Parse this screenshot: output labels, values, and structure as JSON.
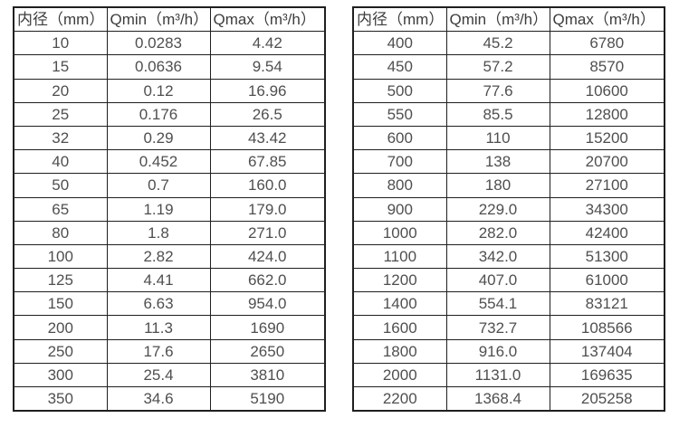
{
  "page": {
    "background_color": "#ffffff",
    "border_color": "#1f1f1f",
    "header_text_color": "#3d3d3d",
    "cell_text_color": "#4f4f4f"
  },
  "tables": [
    {
      "name": "flow-rates-dn10-dn350",
      "headers": [
        "内径（mm）",
        "Qmin（m³/h）",
        "Qmax（m³/h）"
      ],
      "rows": [
        [
          "10",
          "0.0283",
          "4.42"
        ],
        [
          "15",
          "0.0636",
          "9.54"
        ],
        [
          "20",
          "0.12",
          "16.96"
        ],
        [
          "25",
          "0.176",
          "26.5"
        ],
        [
          "32",
          "0.29",
          "43.42"
        ],
        [
          "40",
          "0.452",
          "67.85"
        ],
        [
          "50",
          "0.7",
          "160.0"
        ],
        [
          "65",
          "1.19",
          "179.0"
        ],
        [
          "80",
          "1.8",
          "271.0"
        ],
        [
          "100",
          "2.82",
          "424.0"
        ],
        [
          "125",
          "4.41",
          "662.0"
        ],
        [
          "150",
          "6.63",
          "954.0"
        ],
        [
          "200",
          "11.3",
          "1690"
        ],
        [
          "250",
          "17.6",
          "2650"
        ],
        [
          "300",
          "25.4",
          "3810"
        ],
        [
          "350",
          "34.6",
          "5190"
        ]
      ]
    },
    {
      "name": "flow-rates-dn400-dn2200",
      "headers": [
        "内径（mm）",
        "Qmin（m³/h）",
        "Qmax（m³/h）"
      ],
      "rows": [
        [
          "400",
          "45.2",
          "6780"
        ],
        [
          "450",
          "57.2",
          "8570"
        ],
        [
          "500",
          "77.6",
          "10600"
        ],
        [
          "550",
          "85.5",
          "12800"
        ],
        [
          "600",
          "110",
          "15200"
        ],
        [
          "700",
          "138",
          "20700"
        ],
        [
          "800",
          "180",
          "27100"
        ],
        [
          "900",
          "229.0",
          "34300"
        ],
        [
          "1000",
          "282.0",
          "42400"
        ],
        [
          "1100",
          "342.0",
          "51300"
        ],
        [
          "1200",
          "407.0",
          "61000"
        ],
        [
          "1400",
          "554.1",
          "83121"
        ],
        [
          "1600",
          "732.7",
          "108566"
        ],
        [
          "1800",
          "916.0",
          "137404"
        ],
        [
          "2000",
          "1131.0",
          "169635"
        ],
        [
          "2200",
          "1368.4",
          "205258"
        ]
      ]
    }
  ]
}
